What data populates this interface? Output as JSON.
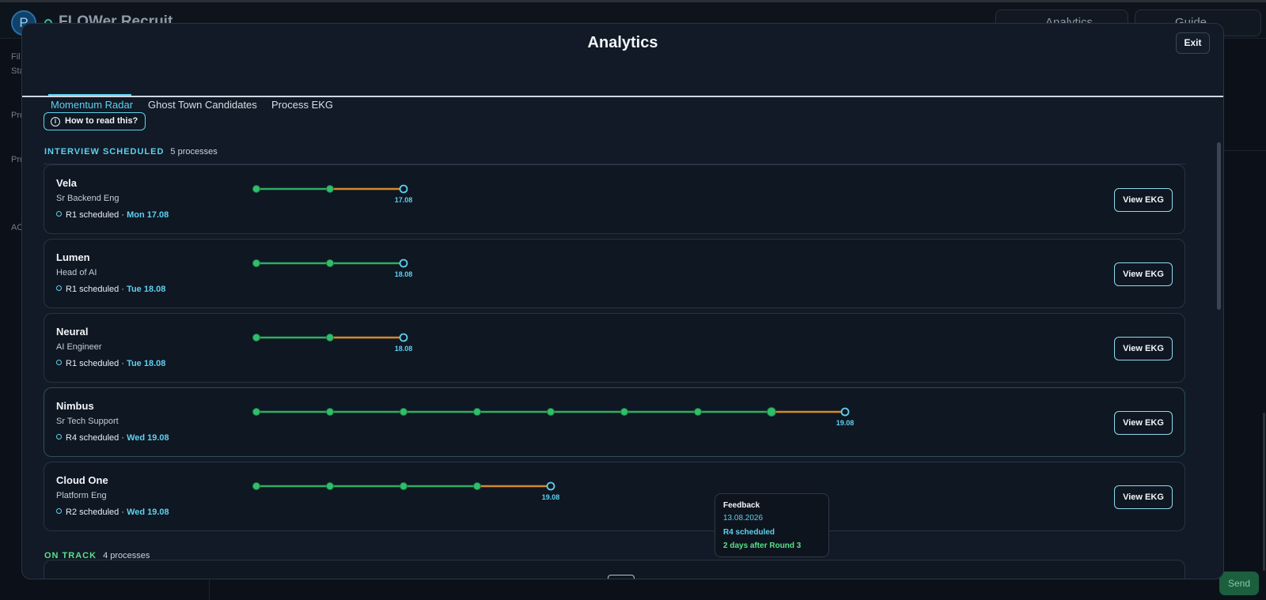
{
  "background": {
    "avatar_letter": "P",
    "brand": "FLOWer Recruit",
    "analytics_button": "Analytics",
    "guide_button": "Guide",
    "sidebar_snippets": [
      "Fil",
      "Sta",
      "Pro",
      "Pro",
      "AC"
    ],
    "send_button": "Send"
  },
  "modal": {
    "title": "Analytics",
    "exit_label": "Exit",
    "tabs": [
      {
        "label": "Momentum Radar",
        "active": true
      },
      {
        "label": "Ghost Town Candidates",
        "active": false
      },
      {
        "label": "Process EKG",
        "active": false
      }
    ],
    "how_to_label": "How to read this?",
    "view_label": "View EKG"
  },
  "sections": {
    "interview": {
      "title": "INTERVIEW SCHEDULED",
      "count": "5 processes"
    },
    "ontrack": {
      "title": "ON TRACK",
      "count": "4 processes"
    }
  },
  "colors": {
    "accent": "#5fd0ef",
    "done": "#2fbf6a",
    "done_line": "#2fae62",
    "waiting_line": "#d4892a",
    "ontrack": "#58e089"
  },
  "processes": [
    {
      "name": "Vela",
      "role": "Sr Backend Eng",
      "status": "R1 scheduled ·",
      "date": "Mon 17.08",
      "steps": 2,
      "last_segment": "waiting",
      "next_label": "17.08"
    },
    {
      "name": "Lumen",
      "role": "Head of AI",
      "status": "R1 scheduled ·",
      "date": "Tue 18.08",
      "steps": 2,
      "last_segment": "done",
      "next_label": "18.08"
    },
    {
      "name": "Neural",
      "role": "AI Engineer",
      "status": "R1 scheduled ·",
      "date": "Tue 18.08",
      "steps": 2,
      "last_segment": "waiting",
      "next_label": "18.08"
    },
    {
      "name": "Nimbus",
      "role": "Sr Tech Support",
      "status": "R4 scheduled ·",
      "date": "Wed 19.08",
      "steps": 8,
      "last_segment": "waiting",
      "next_label": "19.08",
      "highlight": true
    },
    {
      "name": "Cloud One",
      "role": "Platform Eng",
      "status": "R2 scheduled ·",
      "date": "Wed 19.08",
      "steps": 4,
      "last_segment": "waiting",
      "next_label": "19.08"
    }
  ],
  "tooltip": {
    "title": "Feedback",
    "date": "13.08.2026",
    "status": "R4 scheduled",
    "note": "2 days after Round 3"
  }
}
